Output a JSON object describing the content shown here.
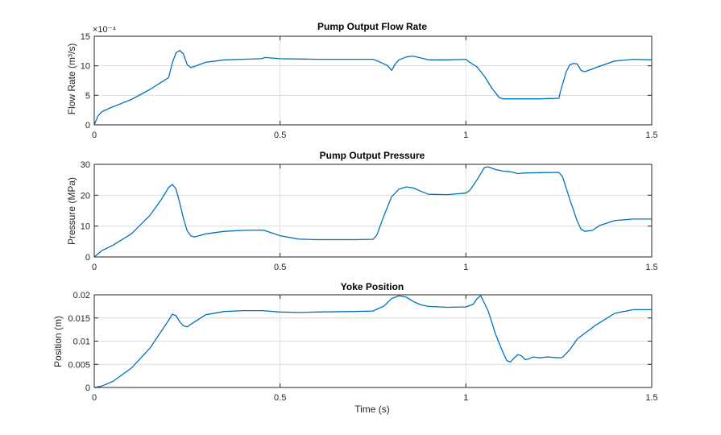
{
  "colors": {
    "series": "#0072BD"
  },
  "chart_data": [
    {
      "id": "flow",
      "type": "line",
      "title": "Pump Output Flow Rate",
      "xlabel": "",
      "ylabel": "Flow  Rate  (m³/s)",
      "exponent_label": "×10⁻⁴",
      "xlim": [
        0,
        1.5
      ],
      "ylim": [
        0,
        15
      ],
      "xticks": [
        0,
        0.5,
        1,
        1.5
      ],
      "xtick_labels": [
        "0",
        "0.5",
        "1",
        "1.5"
      ],
      "yticks": [
        0,
        5,
        10,
        15
      ],
      "ytick_labels": [
        "0",
        "5",
        "10",
        "15"
      ],
      "grid": true,
      "series": [
        {
          "name": "Flow Rate",
          "x": [
            0,
            0.01,
            0.02,
            0.04,
            0.06,
            0.1,
            0.15,
            0.18,
            0.2,
            0.21,
            0.22,
            0.23,
            0.24,
            0.25,
            0.26,
            0.27,
            0.3,
            0.35,
            0.4,
            0.45,
            0.46,
            0.5,
            0.6,
            0.7,
            0.75,
            0.77,
            0.79,
            0.8,
            0.81,
            0.82,
            0.84,
            0.85,
            0.86,
            0.88,
            0.9,
            0.95,
            1.0,
            1.01,
            1.03,
            1.05,
            1.07,
            1.09,
            1.1,
            1.15,
            1.2,
            1.25,
            1.255,
            1.27,
            1.28,
            1.29,
            1.3,
            1.31,
            1.32,
            1.35,
            1.4,
            1.45,
            1.5
          ],
          "y": [
            0,
            1.5,
            2.2,
            2.8,
            3.3,
            4.3,
            6.0,
            7.2,
            8.0,
            10.5,
            12.2,
            12.6,
            12.0,
            10.2,
            9.7,
            9.9,
            10.6,
            11.0,
            11.1,
            11.2,
            11.4,
            11.2,
            11.1,
            11.1,
            11.1,
            10.6,
            10.0,
            9.2,
            10.3,
            11.0,
            11.5,
            11.6,
            11.6,
            11.3,
            11.0,
            11.0,
            11.1,
            10.6,
            9.8,
            8.2,
            6.2,
            4.6,
            4.4,
            4.4,
            4.4,
            4.5,
            5.8,
            9.0,
            10.2,
            10.4,
            10.3,
            9.2,
            9.0,
            9.7,
            10.8,
            11.1,
            11.0
          ]
        }
      ]
    },
    {
      "id": "pressure",
      "type": "line",
      "title": "Pump Output Pressure",
      "xlabel": "",
      "ylabel": "Pressure (MPa)",
      "xlim": [
        0,
        1.5
      ],
      "ylim": [
        0,
        30
      ],
      "xticks": [
        0,
        0.5,
        1,
        1.5
      ],
      "xtick_labels": [
        "0",
        "0.5",
        "1",
        "1.5"
      ],
      "yticks": [
        0,
        10,
        20,
        30
      ],
      "ytick_labels": [
        "0",
        "10",
        "20",
        "30"
      ],
      "grid": true,
      "series": [
        {
          "name": "Pressure",
          "x": [
            0,
            0.02,
            0.05,
            0.1,
            0.15,
            0.18,
            0.2,
            0.21,
            0.22,
            0.23,
            0.24,
            0.25,
            0.26,
            0.27,
            0.3,
            0.35,
            0.4,
            0.45,
            0.46,
            0.5,
            0.55,
            0.6,
            0.7,
            0.75,
            0.76,
            0.78,
            0.8,
            0.82,
            0.84,
            0.86,
            0.88,
            0.9,
            0.95,
            1.0,
            1.01,
            1.03,
            1.05,
            1.06,
            1.08,
            1.1,
            1.12,
            1.14,
            1.16,
            1.2,
            1.25,
            1.26,
            1.28,
            1.3,
            1.31,
            1.32,
            1.34,
            1.36,
            1.4,
            1.45,
            1.5
          ],
          "y": [
            0,
            2.0,
            3.8,
            7.5,
            13.5,
            18.5,
            22.5,
            23.5,
            22.0,
            17.5,
            12.5,
            8.5,
            6.8,
            6.5,
            7.5,
            8.3,
            8.6,
            8.7,
            8.5,
            6.9,
            5.8,
            5.6,
            5.6,
            5.7,
            7.0,
            13.5,
            19.5,
            22.0,
            22.7,
            22.3,
            21.2,
            20.3,
            20.2,
            20.7,
            21.5,
            25.0,
            29.0,
            29.2,
            28.3,
            27.8,
            27.6,
            27.0,
            27.2,
            27.3,
            27.4,
            26.0,
            18.5,
            11.5,
            9.0,
            8.3,
            8.6,
            10.2,
            11.8,
            12.3,
            12.3
          ]
        }
      ]
    },
    {
      "id": "yoke",
      "type": "line",
      "title": "Yoke Position",
      "xlabel": "Time (s)",
      "ylabel": "Position (m)",
      "xlim": [
        0,
        1.5
      ],
      "ylim": [
        0,
        0.02
      ],
      "xticks": [
        0,
        0.5,
        1,
        1.5
      ],
      "xtick_labels": [
        "0",
        "0.5",
        "1",
        "1.5"
      ],
      "yticks": [
        0,
        0.005,
        0.01,
        0.015,
        0.02
      ],
      "ytick_labels": [
        "0",
        "0.005",
        "0.01",
        "0.015",
        "0.02"
      ],
      "grid": true,
      "series": [
        {
          "name": "Yoke Position",
          "x": [
            0,
            0.02,
            0.05,
            0.1,
            0.15,
            0.2,
            0.21,
            0.22,
            0.23,
            0.24,
            0.25,
            0.27,
            0.3,
            0.35,
            0.4,
            0.45,
            0.5,
            0.55,
            0.6,
            0.7,
            0.75,
            0.78,
            0.8,
            0.82,
            0.84,
            0.86,
            0.88,
            0.9,
            0.95,
            1.0,
            1.02,
            1.03,
            1.04,
            1.06,
            1.08,
            1.1,
            1.11,
            1.12,
            1.13,
            1.14,
            1.15,
            1.16,
            1.17,
            1.18,
            1.2,
            1.22,
            1.25,
            1.26,
            1.28,
            1.3,
            1.35,
            1.4,
            1.45,
            1.5
          ],
          "y": [
            0,
            0.0003,
            0.0013,
            0.0042,
            0.0085,
            0.0145,
            0.0158,
            0.0155,
            0.0142,
            0.0133,
            0.0131,
            0.0142,
            0.0157,
            0.0164,
            0.0166,
            0.0166,
            0.0163,
            0.0162,
            0.0163,
            0.0164,
            0.0165,
            0.0176,
            0.0192,
            0.0198,
            0.0195,
            0.0185,
            0.0178,
            0.0175,
            0.0173,
            0.0174,
            0.018,
            0.0192,
            0.0198,
            0.0165,
            0.0115,
            0.0075,
            0.0058,
            0.0055,
            0.0064,
            0.0071,
            0.0068,
            0.006,
            0.0062,
            0.0066,
            0.0064,
            0.0066,
            0.0064,
            0.0065,
            0.0082,
            0.0105,
            0.0135,
            0.016,
            0.0168,
            0.0168
          ]
        }
      ]
    }
  ]
}
